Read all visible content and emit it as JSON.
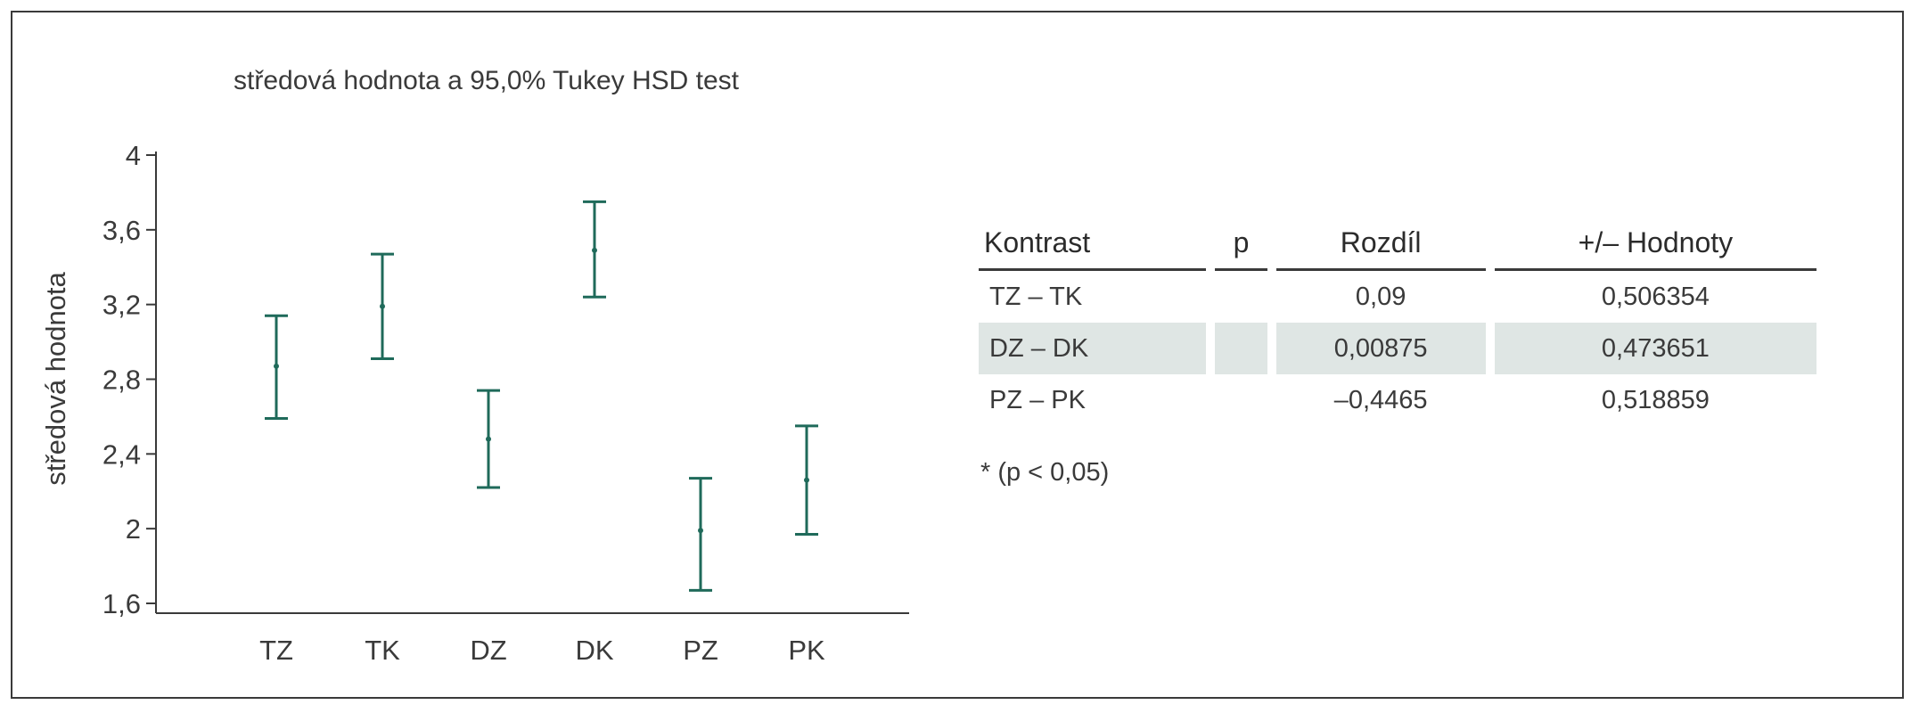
{
  "chart_data": {
    "type": "scatter",
    "title": "středová hodnota a 95,0% Tukey HSD test",
    "ylabel": "středová hodnota",
    "xlabel": "",
    "categories": [
      "TZ",
      "TK",
      "DZ",
      "DK",
      "PZ",
      "PK"
    ],
    "series": [
      {
        "values": [
          2.87,
          3.19,
          2.48,
          3.49,
          1.99,
          2.26
        ],
        "lower": [
          2.59,
          2.91,
          2.22,
          3.24,
          1.67,
          1.97
        ],
        "upper": [
          3.14,
          3.47,
          2.74,
          3.75,
          2.27,
          2.55
        ]
      }
    ],
    "ylim": [
      1.6,
      4.0
    ],
    "yticks": [
      "1,6",
      "2",
      "2,4",
      "2,8",
      "3,2",
      "3,6",
      "4"
    ],
    "ytick_values": [
      1.6,
      2.0,
      2.4,
      2.8,
      3.2,
      3.6,
      4.0
    ],
    "grid": false,
    "color": "#1f6a5a"
  },
  "table": {
    "headers": [
      "Kontrast",
      "p",
      "Rozdíl",
      "+/– Hodnoty"
    ],
    "rows": [
      {
        "contrast": "TZ – TK",
        "p": "",
        "diff": "0,09",
        "limits": "0,506354"
      },
      {
        "contrast": "DZ – DK",
        "p": "",
        "diff": "0,00875",
        "limits": "0,473651"
      },
      {
        "contrast": "PZ – PK",
        "p": "",
        "diff": "–0,4465",
        "limits": "0,518859"
      }
    ],
    "note": "* (p < 0,05)"
  }
}
